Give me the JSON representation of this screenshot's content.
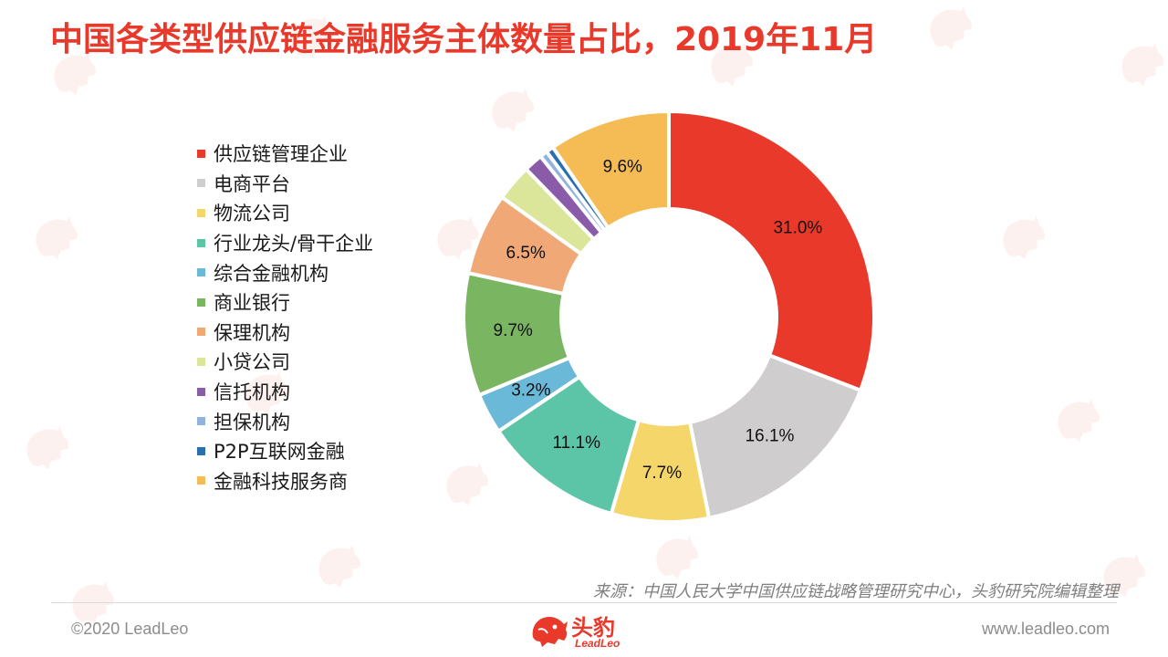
{
  "title": "中国各类型供应链金融服务主体数量占比，2019年11月",
  "chart_data": {
    "type": "pie",
    "title": "中国各类型供应链金融服务主体数量占比，2019年11月",
    "donut": true,
    "legend_position": "left",
    "categories": [
      "供应链管理企业",
      "电商平台",
      "物流公司",
      "行业龙头/骨干企业",
      "综合金融机构",
      "商业银行",
      "保理机构",
      "小贷公司",
      "信托机构",
      "担保机构",
      "P2P互联网金融",
      "金融科技服务商"
    ],
    "values": [
      31.0,
      16.1,
      7.7,
      11.1,
      3.2,
      9.7,
      6.5,
      2.9,
      1.5,
      0.6,
      0.6,
      9.6
    ],
    "data_labels": [
      "31.0%",
      "16.1%",
      "7.7%",
      "11.1%",
      "3.2%",
      "9.7%",
      "6.5%",
      "",
      "",
      "",
      "",
      "9.6%"
    ],
    "colors": [
      "#e8392b",
      "#cfcdcd",
      "#f5d66b",
      "#5cc4a7",
      "#6ab9d9",
      "#7ab662",
      "#f0a876",
      "#dbe69a",
      "#8a5ba8",
      "#92b3de",
      "#2a6fb0",
      "#f5bc55"
    ]
  },
  "footer": {
    "source": "来源：中国人民大学中国供应链战略管理研究中心，头豹研究院编辑整理",
    "copyright": "©2020 LeadLeo",
    "website": "www.leadleo.com",
    "logo_cn": "头豹",
    "logo_en": "LeadLeo"
  }
}
